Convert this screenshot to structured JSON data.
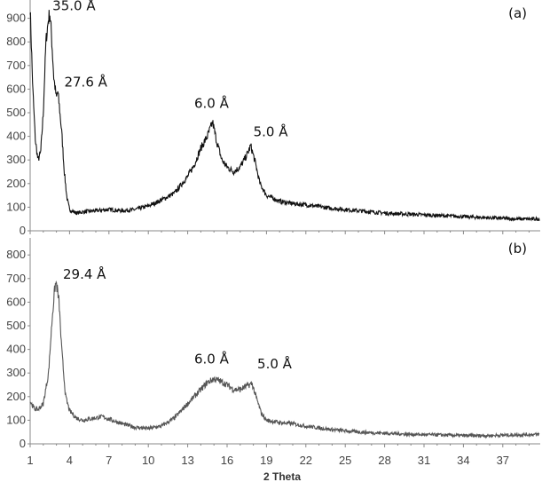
{
  "chart_data": {
    "type": "line",
    "xlabel": "2 Theta",
    "x_ticks": [
      1,
      4,
      7,
      10,
      13,
      16,
      19,
      22,
      25,
      28,
      31,
      34,
      37
    ],
    "xlim": [
      1,
      39.8
    ],
    "panels": [
      {
        "label": "(a)",
        "ylim": [
          0,
          1000
        ],
        "y_ticks": [
          0,
          100,
          200,
          300,
          400,
          500,
          600,
          700,
          800,
          900
        ],
        "color": "#111111",
        "annotations": [
          {
            "text": "35.0 Å",
            "x": 2.7,
            "y": 935
          },
          {
            "text": "27.6 Å",
            "x": 3.6,
            "y": 610
          },
          {
            "text": "6.0 Å",
            "x": 13.5,
            "y": 520
          },
          {
            "text": "5.0 Å",
            "x": 18.0,
            "y": 400
          }
        ],
        "x": [
          1.0,
          1.2,
          1.4,
          1.6,
          1.8,
          2.0,
          2.2,
          2.4,
          2.5,
          2.6,
          2.8,
          3.0,
          3.1,
          3.2,
          3.4,
          3.6,
          3.8,
          4.0,
          4.5,
          5,
          6,
          7,
          8,
          9,
          10,
          11,
          12,
          13,
          13.5,
          14,
          14.5,
          14.9,
          15.2,
          15.6,
          16,
          16.5,
          17,
          17.5,
          17.8,
          18.1,
          18.5,
          19,
          20,
          21,
          22,
          24,
          26,
          28,
          30,
          32,
          34,
          36,
          38,
          39.8
        ],
        "y": [
          950,
          600,
          380,
          300,
          330,
          500,
          800,
          900,
          920,
          850,
          650,
          560,
          590,
          540,
          420,
          250,
          140,
          90,
          75,
          80,
          85,
          90,
          85,
          90,
          105,
          130,
          160,
          230,
          280,
          350,
          400,
          460,
          380,
          300,
          270,
          250,
          270,
          320,
          360,
          300,
          200,
          150,
          125,
          115,
          110,
          95,
          85,
          75,
          70,
          65,
          60,
          55,
          50,
          50
        ]
      },
      {
        "label": "(b)",
        "ylim": [
          0,
          870
        ],
        "y_ticks": [
          0,
          100,
          200,
          300,
          400,
          500,
          600,
          700,
          800
        ],
        "color": "#555555",
        "annotations": [
          {
            "text": "29.4 Å",
            "x": 3.5,
            "y": 700
          },
          {
            "text": "6.0 Å",
            "x": 13.5,
            "y": 340
          },
          {
            "text": "5.0 Å",
            "x": 18.3,
            "y": 320
          }
        ],
        "x": [
          1.0,
          1.3,
          1.6,
          2.0,
          2.4,
          2.7,
          2.9,
          3.0,
          3.2,
          3.4,
          3.7,
          4,
          4.5,
          5,
          5.5,
          6,
          6.5,
          7,
          8,
          9,
          10,
          11,
          12,
          13,
          14,
          14.5,
          15,
          15.5,
          16,
          16.5,
          17,
          17.5,
          17.9,
          18.2,
          18.6,
          19,
          20,
          21,
          22,
          24,
          26,
          28,
          30,
          32,
          34,
          36,
          38,
          39.8
        ],
        "y": [
          180,
          150,
          145,
          170,
          300,
          550,
          670,
          680,
          600,
          400,
          200,
          140,
          110,
          100,
          105,
          110,
          115,
          105,
          85,
          70,
          65,
          75,
          110,
          170,
          230,
          260,
          275,
          265,
          250,
          230,
          230,
          245,
          255,
          200,
          130,
          100,
          90,
          85,
          75,
          60,
          50,
          45,
          40,
          38,
          35,
          35,
          38,
          40
        ]
      }
    ]
  }
}
